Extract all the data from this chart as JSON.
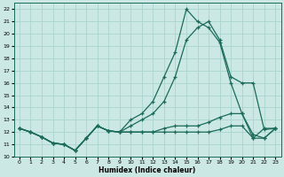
{
  "xlabel": "Humidex (Indice chaleur)",
  "background_color": "#cce8e4",
  "grid_color": "#aad4ce",
  "line_color": "#1a6b5a",
  "xlim": [
    -0.5,
    23.5
  ],
  "ylim": [
    10.0,
    22.5
  ],
  "yticks": [
    10,
    11,
    12,
    13,
    14,
    15,
    16,
    17,
    18,
    19,
    20,
    21,
    22
  ],
  "xticks": [
    0,
    1,
    2,
    3,
    4,
    5,
    6,
    7,
    8,
    9,
    10,
    11,
    12,
    13,
    14,
    15,
    16,
    17,
    18,
    19,
    20,
    21,
    22,
    23
  ],
  "line_peak_x": [
    0,
    1,
    2,
    3,
    4,
    5,
    6,
    7,
    8,
    9,
    10,
    11,
    12,
    13,
    14,
    15,
    16,
    17,
    18,
    19,
    20,
    21,
    22,
    23
  ],
  "line_peak_y": [
    12.3,
    12.0,
    11.6,
    11.1,
    11.0,
    10.5,
    11.5,
    12.5,
    12.1,
    12.0,
    13.0,
    13.5,
    14.5,
    16.5,
    18.5,
    22.0,
    21.0,
    20.5,
    19.3,
    16.0,
    13.5,
    11.5,
    12.3,
    12.3
  ],
  "line_diag_x": [
    0,
    1,
    2,
    3,
    4,
    5,
    6,
    7,
    8,
    9,
    10,
    11,
    12,
    13,
    14,
    15,
    16,
    17,
    18,
    19,
    20,
    21,
    22,
    23
  ],
  "line_diag_y": [
    12.3,
    12.0,
    11.6,
    11.1,
    11.0,
    10.5,
    11.5,
    12.5,
    12.1,
    12.0,
    12.5,
    13.0,
    13.5,
    14.5,
    16.5,
    19.5,
    20.5,
    21.0,
    19.5,
    16.5,
    16.0,
    16.0,
    12.2,
    12.3
  ],
  "line_flat1_x": [
    0,
    1,
    2,
    3,
    4,
    5,
    6,
    7,
    8,
    9,
    10,
    11,
    12,
    13,
    14,
    15,
    16,
    17,
    18,
    19,
    20,
    21,
    22,
    23
  ],
  "line_flat1_y": [
    12.3,
    12.0,
    11.6,
    11.1,
    11.0,
    10.5,
    11.5,
    12.5,
    12.1,
    12.0,
    12.0,
    12.0,
    12.0,
    12.3,
    12.5,
    12.5,
    12.5,
    12.8,
    13.2,
    13.5,
    13.5,
    11.8,
    11.5,
    12.3
  ],
  "line_flat2_x": [
    0,
    1,
    2,
    3,
    4,
    5,
    6,
    7,
    8,
    9,
    10,
    11,
    12,
    13,
    14,
    15,
    16,
    17,
    18,
    19,
    20,
    21,
    22,
    23
  ],
  "line_flat2_y": [
    12.3,
    12.0,
    11.6,
    11.1,
    11.0,
    10.5,
    11.5,
    12.5,
    12.1,
    12.0,
    12.0,
    12.0,
    12.0,
    12.0,
    12.0,
    12.0,
    12.0,
    12.0,
    12.2,
    12.5,
    12.5,
    11.5,
    11.5,
    12.3
  ]
}
